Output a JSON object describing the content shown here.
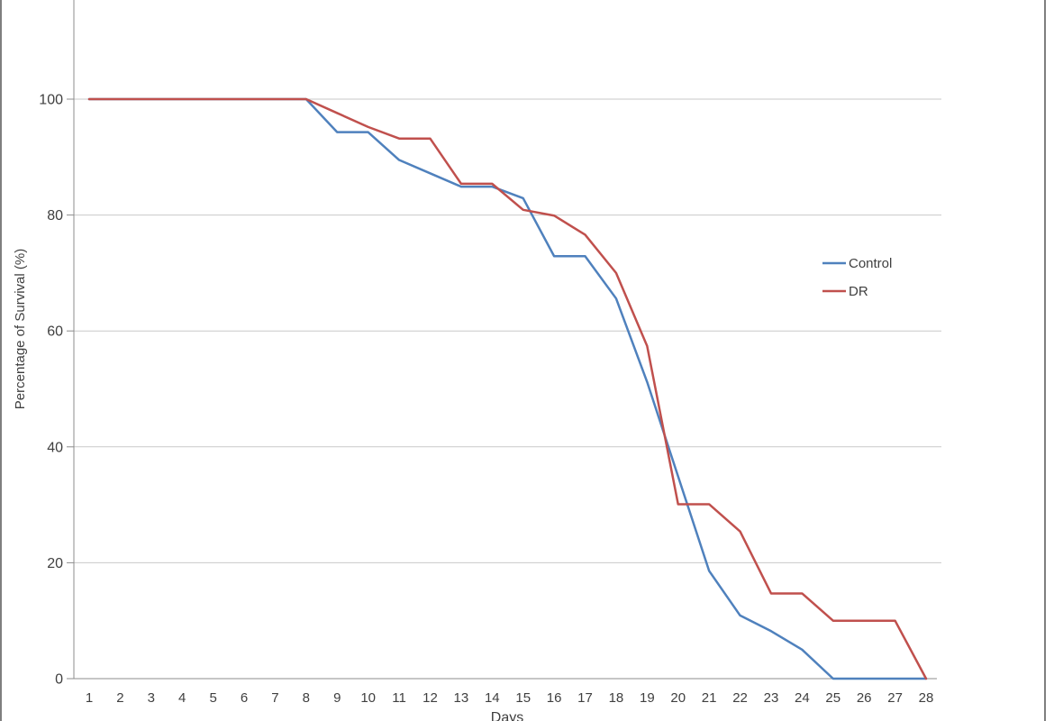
{
  "chart_data": {
    "type": "line",
    "title": "",
    "xlabel": "Days",
    "ylabel": "Percentage of Survival (%)",
    "x": [
      1,
      2,
      3,
      4,
      5,
      6,
      7,
      8,
      9,
      10,
      11,
      12,
      13,
      14,
      15,
      16,
      17,
      18,
      19,
      20,
      21,
      22,
      23,
      24,
      25,
      26,
      27,
      28
    ],
    "xlim": [
      1,
      28
    ],
    "ylim": [
      0,
      117
    ],
    "yticks": [
      0,
      20,
      40,
      60,
      80,
      100
    ],
    "grid": true,
    "legend_position": "right",
    "series": [
      {
        "name": "Control",
        "color": "#4F81BD",
        "values": [
          100,
          100,
          100,
          100,
          100,
          100,
          100,
          100,
          94.3,
          94.3,
          89.5,
          87.2,
          84.9,
          84.9,
          82.9,
          72.9,
          72.9,
          65.6,
          51.2,
          34.9,
          18.6,
          10.9,
          8.2,
          5,
          0,
          0,
          0,
          0
        ]
      },
      {
        "name": "DR",
        "color": "#C0504D",
        "values": [
          100,
          100,
          100,
          100,
          100,
          100,
          100,
          100,
          97.6,
          95.2,
          93.2,
          93.2,
          85.4,
          85.4,
          80.9,
          79.9,
          76.6,
          70,
          57.4,
          30.1,
          30.1,
          25.4,
          14.7,
          14.7,
          10,
          10,
          10,
          0
        ]
      }
    ]
  },
  "colors": {
    "gridline": "#C9C9C9",
    "axis": "#8C8C8C",
    "tick_label": "#3F3F3F",
    "frame_border": "#7F7F7F",
    "background": "#FFFFFF"
  }
}
